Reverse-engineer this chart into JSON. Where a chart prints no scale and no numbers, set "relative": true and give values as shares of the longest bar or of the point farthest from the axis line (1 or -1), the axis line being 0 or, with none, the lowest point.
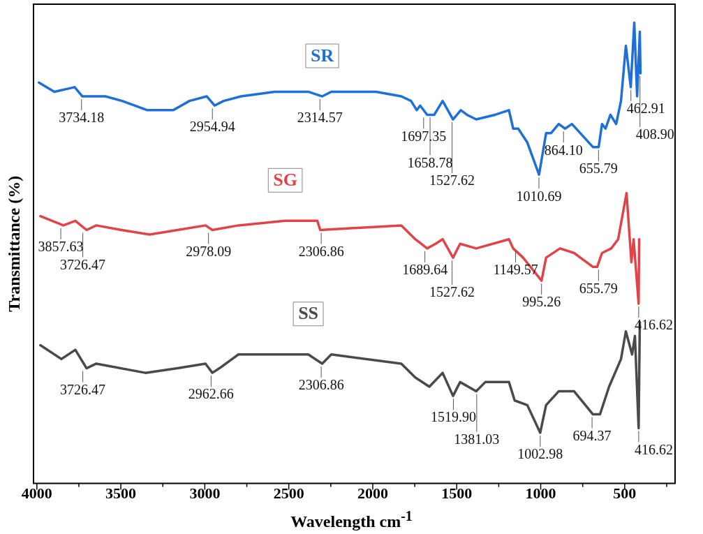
{
  "chart_data": {
    "type": "line",
    "xlabel": "Wavelength cm$^{-1}$",
    "ylabel": "Transmittance (%)",
    "relative": true,
    "legend": false,
    "grid": false,
    "tick_labels": "x",
    "marker": "none",
    "line_style": "solid",
    "xlim": [
      4020,
      200
    ],
    "xticks": [
      4000,
      {
        "value": 3750,
        "label": null
      },
      3500,
      {
        "value": 3250,
        "label": null
      },
      3000,
      {
        "value": 2750,
        "label": null
      },
      2500,
      {
        "value": 2250,
        "label": null
      },
      2000,
      {
        "value": 1750,
        "label": null
      },
      1500,
      {
        "value": 1250,
        "label": null
      },
      1000,
      {
        "value": 750,
        "label": null
      },
      500,
      {
        "value": 250,
        "label": null
      }
    ],
    "series": [
      {
        "name": "SR",
        "color": "#1f6fd8",
        "x": [
          3988,
          3896,
          3775,
          3729,
          3592,
          3492,
          3342,
          3188,
          3092,
          2988,
          2942,
          2888,
          2784,
          2584,
          2384,
          2301,
          2247,
          1980,
          1830,
          1772,
          1738,
          1718,
          1676,
          1634,
          1584,
          1522,
          1476,
          1439,
          1384,
          1272,
          1189,
          1164,
          1134,
          1080,
          1010,
          968,
          939,
          893,
          855,
          814,
          689,
          655,
          635,
          614,
          585,
          551,
          522,
          493,
          464,
          443,
          426,
          410,
          406
        ],
        "values": [
          0.87,
          0.85,
          0.86,
          0.84,
          0.84,
          0.83,
          0.81,
          0.81,
          0.83,
          0.84,
          0.82,
          0.83,
          0.84,
          0.85,
          0.85,
          0.84,
          0.85,
          0.85,
          0.84,
          0.83,
          0.81,
          0.82,
          0.8,
          0.8,
          0.83,
          0.79,
          0.81,
          0.8,
          0.79,
          0.8,
          0.81,
          0.77,
          0.77,
          0.74,
          0.67,
          0.76,
          0.76,
          0.78,
          0.77,
          0.78,
          0.73,
          0.73,
          0.78,
          0.77,
          0.8,
          0.78,
          0.83,
          0.95,
          0.86,
          1.0,
          0.84,
          0.98,
          0.89
        ]
      },
      {
        "name": "SG",
        "color": "#e04448",
        "x": [
          3979,
          3842,
          3771,
          3704,
          3646,
          3496,
          3329,
          3163,
          2996,
          2955,
          2800,
          2521,
          2330,
          2313,
          1830,
          1747,
          1676,
          1626,
          1584,
          1522,
          1480,
          1384,
          1189,
          1164,
          1105,
          995,
          968,
          885,
          801,
          689,
          664,
          635,
          580,
          539,
          489,
          460,
          447,
          417,
          414
        ],
        "values": [
          0.58,
          0.56,
          0.57,
          0.55,
          0.56,
          0.55,
          0.54,
          0.55,
          0.56,
          0.55,
          0.56,
          0.57,
          0.57,
          0.55,
          0.56,
          0.53,
          0.51,
          0.52,
          0.53,
          0.49,
          0.52,
          0.51,
          0.53,
          0.51,
          0.49,
          0.44,
          0.49,
          0.51,
          0.5,
          0.47,
          0.47,
          0.5,
          0.51,
          0.53,
          0.63,
          0.48,
          0.53,
          0.39,
          0.53
        ]
      },
      {
        "name": "SS",
        "color": "#4a4a4a",
        "x": [
          3979,
          3854,
          3771,
          3704,
          3646,
          3354,
          3163,
          2996,
          2955,
          2913,
          2800,
          2384,
          2301,
          2247,
          1830,
          1747,
          1663,
          1584,
          1522,
          1480,
          1384,
          1330,
          1189,
          1155,
          1080,
          1003,
          968,
          893,
          801,
          689,
          647,
          593,
          522,
          493,
          456,
          439,
          417,
          410
        ],
        "values": [
          0.3,
          0.27,
          0.29,
          0.25,
          0.26,
          0.24,
          0.25,
          0.26,
          0.24,
          0.25,
          0.28,
          0.28,
          0.26,
          0.28,
          0.26,
          0.23,
          0.21,
          0.24,
          0.19,
          0.22,
          0.2,
          0.22,
          0.22,
          0.18,
          0.17,
          0.11,
          0.17,
          0.2,
          0.2,
          0.15,
          0.15,
          0.21,
          0.27,
          0.33,
          0.28,
          0.32,
          0.12,
          0.35
        ]
      }
    ],
    "annotations": [
      {
        "text": "3734.18",
        "x": 3734.18,
        "y": 0.84
      },
      {
        "text": "2954.94",
        "x": 2954.94,
        "y": 0.82
      },
      {
        "text": "2314.57",
        "x": 2314.57,
        "y": 0.84
      },
      {
        "text": "1697.35",
        "x": 1697.35,
        "y": 0.8
      },
      {
        "text": "1658.78",
        "x": 1658.78,
        "y": 0.8
      },
      {
        "text": "1527.62",
        "x": 1527.62,
        "y": 0.79
      },
      {
        "text": "1010.69",
        "x": 1010.69,
        "y": 0.67
      },
      {
        "text": "864.10",
        "x": 864.1,
        "y": 0.77
      },
      {
        "text": "655.79",
        "x": 655.79,
        "y": 0.73
      },
      {
        "text": "462.91",
        "x": 462.91,
        "y": 0.86
      },
      {
        "text": "408.90",
        "x": 408.9,
        "y": 0.89
      },
      {
        "text": "3857.63",
        "x": 3857.63,
        "y": 0.56
      },
      {
        "text": "3726.47",
        "x": 3726.47,
        "y": 0.55
      },
      {
        "text": "2978.09",
        "x": 2978.09,
        "y": 0.55
      },
      {
        "text": "2306.86",
        "x": 2306.86,
        "y": 0.55
      },
      {
        "text": "1689.64",
        "x": 1689.64,
        "y": 0.51
      },
      {
        "text": "1527.62",
        "x": 1527.62,
        "y": 0.49
      },
      {
        "text": "1149.57",
        "x": 1149.57,
        "y": 0.51
      },
      {
        "text": "995.26",
        "x": 995.26,
        "y": 0.44
      },
      {
        "text": "655.79",
        "x": 655.79,
        "y": 0.47
      },
      {
        "text": "416.62",
        "x": 416.62,
        "y": 0.39
      },
      {
        "text": "3726.47",
        "x": 3726.47,
        "y": 0.25
      },
      {
        "text": "2962.66",
        "x": 2962.66,
        "y": 0.24
      },
      {
        "text": "2306.86",
        "x": 2306.86,
        "y": 0.26
      },
      {
        "text": "1519.90",
        "x": 1519.9,
        "y": 0.19
      },
      {
        "text": "1381.03",
        "x": 1381.03,
        "y": 0.2
      },
      {
        "text": "1002.98",
        "x": 1002.98,
        "y": 0.11
      },
      {
        "text": "694.37",
        "x": 694.37,
        "y": 0.15
      },
      {
        "text": "416.62",
        "x": 416.62,
        "y": 0.12
      }
    ]
  }
}
